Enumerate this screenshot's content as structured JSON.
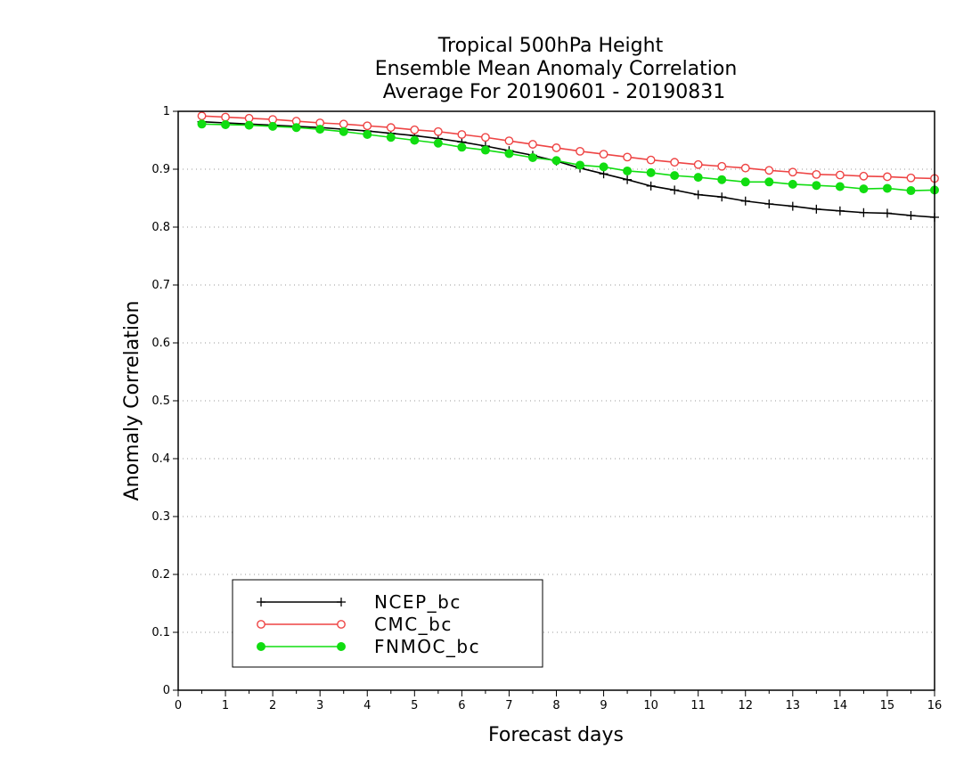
{
  "chart_data": {
    "type": "line",
    "title_lines": [
      "Tropical 500hPa Height",
      "Ensemble Mean Anomaly Correlation",
      "Average For 20190601 - 20190831"
    ],
    "xlabel": "Forecast days",
    "ylabel": "Anomaly Correlation",
    "xlim": [
      0,
      16
    ],
    "ylim": [
      0,
      1
    ],
    "x_ticks": [
      "0",
      "1",
      "2",
      "3",
      "4",
      "5",
      "6",
      "7",
      "8",
      "9",
      "10",
      "11",
      "12",
      "13",
      "14",
      "15",
      "16"
    ],
    "y_ticks": [
      "0",
      "0.1",
      "0.2",
      "0.3",
      "0.4",
      "0.5",
      "0.6",
      "0.7",
      "0.8",
      "0.9",
      "1"
    ],
    "grid": "horizontal-dotted",
    "legend_position": "bottom-left",
    "x": [
      0.5,
      1,
      1.5,
      2,
      2.5,
      3,
      3.5,
      4,
      4.5,
      5,
      5.5,
      6,
      6.5,
      7,
      7.5,
      8,
      8.5,
      9,
      9.5,
      10,
      10.5,
      11,
      11.5,
      12,
      12.5,
      13,
      13.5,
      14,
      14.5,
      15,
      15.5,
      16
    ],
    "series": [
      {
        "name": "NCEP_bc",
        "color": "#000000",
        "marker": "plus",
        "values": [
          0.982,
          0.98,
          0.978,
          0.976,
          0.974,
          0.972,
          0.969,
          0.966,
          0.962,
          0.958,
          0.953,
          0.947,
          0.94,
          0.932,
          0.924,
          0.914,
          0.902,
          0.892,
          0.882,
          0.871,
          0.864,
          0.856,
          0.852,
          0.845,
          0.84,
          0.836,
          0.831,
          0.828,
          0.825,
          0.824,
          0.82,
          0.817
        ]
      },
      {
        "name": "CMC_bc",
        "color": "#ee4444",
        "marker": "open-circle",
        "values": [
          0.992,
          0.99,
          0.988,
          0.986,
          0.983,
          0.98,
          0.978,
          0.975,
          0.972,
          0.968,
          0.965,
          0.96,
          0.955,
          0.949,
          0.943,
          0.937,
          0.931,
          0.926,
          0.921,
          0.916,
          0.912,
          0.908,
          0.905,
          0.902,
          0.898,
          0.895,
          0.891,
          0.89,
          0.888,
          0.887,
          0.885,
          0.884
        ]
      },
      {
        "name": "FNMOC_bc",
        "color": "#11dd11",
        "marker": "filled-circle",
        "values": [
          0.978,
          0.977,
          0.976,
          0.974,
          0.972,
          0.969,
          0.965,
          0.96,
          0.955,
          0.95,
          0.945,
          0.938,
          0.933,
          0.927,
          0.92,
          0.915,
          0.907,
          0.904,
          0.897,
          0.894,
          0.889,
          0.886,
          0.882,
          0.878,
          0.878,
          0.874,
          0.872,
          0.87,
          0.866,
          0.867,
          0.863,
          0.864
        ]
      }
    ]
  }
}
